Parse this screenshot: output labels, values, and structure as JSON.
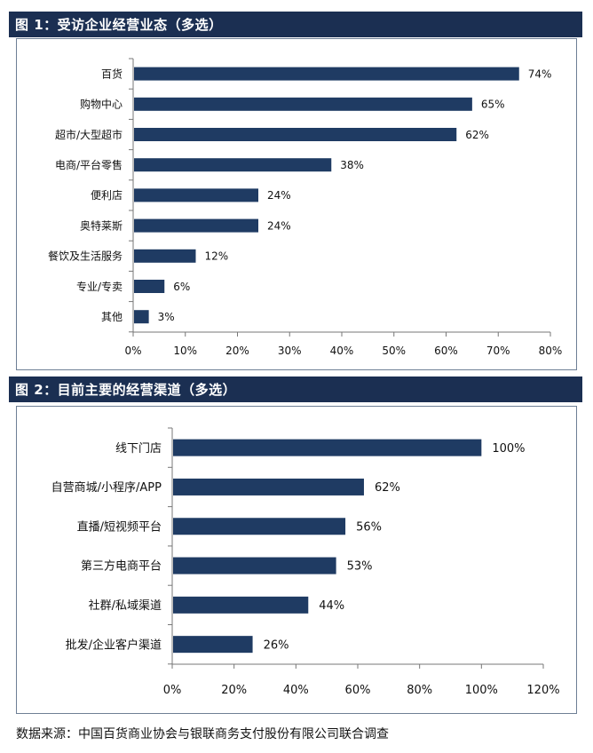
{
  "figure1": {
    "title": "图 1：受访企业经营业态（多选）",
    "chart_data": {
      "type": "bar",
      "orientation": "horizontal",
      "categories": [
        "百货",
        "购物中心",
        "超市/大型超市",
        "电商/平台零售",
        "便利店",
        "奥特莱斯",
        "餐饮及生活服务",
        "专业/专卖",
        "其他"
      ],
      "values": [
        74,
        65,
        62,
        38,
        24,
        24,
        12,
        6,
        3
      ],
      "value_labels": [
        "74%",
        "65%",
        "62%",
        "38%",
        "24%",
        "24%",
        "12%",
        "6%",
        "3%"
      ],
      "xlim": [
        0,
        80
      ],
      "xticks": [
        "0%",
        "10%",
        "20%",
        "30%",
        "40%",
        "50%",
        "60%",
        "70%",
        "80%"
      ],
      "bar_color": "#1f3b63",
      "grid": false
    }
  },
  "figure2": {
    "title": "图 2：目前主要的经营渠道（多选）",
    "chart_data": {
      "type": "bar",
      "orientation": "horizontal",
      "categories": [
        "线下门店",
        "自营商城/小程序/APP",
        "直播/短视频平台",
        "第三方电商平台",
        "社群/私域渠道",
        "批发/企业客户渠道"
      ],
      "values": [
        100,
        62,
        56,
        53,
        44,
        26
      ],
      "value_labels": [
        "100%",
        "62%",
        "56%",
        "53%",
        "44%",
        "26%"
      ],
      "xlim": [
        0,
        120
      ],
      "xticks": [
        "0%",
        "20%",
        "40%",
        "60%",
        "80%",
        "100%",
        "120%"
      ],
      "bar_color": "#1f3b63",
      "grid": false
    }
  },
  "source": "数据来源：中国百货商业协会与银联商务支付股份有限公司联合调查",
  "colors": {
    "header_bg": "#1b2f52",
    "header_text": "#ffffff",
    "bar": "#1f3b63",
    "border": "#6e7f95"
  }
}
